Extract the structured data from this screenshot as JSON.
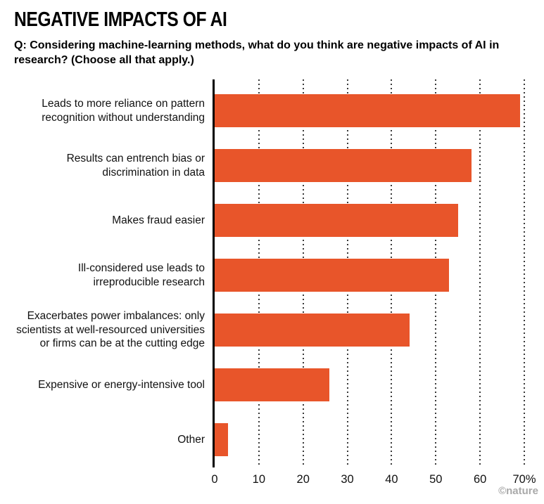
{
  "header": {
    "title": "NEGATIVE IMPACTS OF AI",
    "question": "Q: Considering machine-learning methods, what do you think are negative impacts of AI in research? (Choose all that apply.)"
  },
  "chart_data": {
    "type": "bar",
    "orientation": "horizontal",
    "title": "NEGATIVE IMPACTS OF AI",
    "xlabel": "",
    "ylabel": "",
    "categories": [
      "Leads to more reliance on pattern recognition without understanding",
      "Results can entrench bias or discrimination in data",
      "Makes fraud easier",
      "Ill-considered use leads to irreproducible research",
      "Exacerbates power imbalances: only scientists at well-resourced universities or firms can be at the cutting edge",
      "Expensive or energy-intensive tool",
      "Other"
    ],
    "values": [
      69,
      58,
      55,
      53,
      44,
      26,
      3
    ],
    "unit": "%",
    "xlim": [
      0,
      70
    ],
    "xticks": [
      0,
      10,
      20,
      30,
      40,
      50,
      60,
      70
    ],
    "xtick_labels": [
      "0",
      "10",
      "20",
      "30",
      "40",
      "50",
      "60",
      "70%"
    ],
    "bar_color": "#e8552a",
    "grid": "dotted-vertical",
    "legend": "none"
  },
  "footer": {
    "credit": "©nature"
  }
}
